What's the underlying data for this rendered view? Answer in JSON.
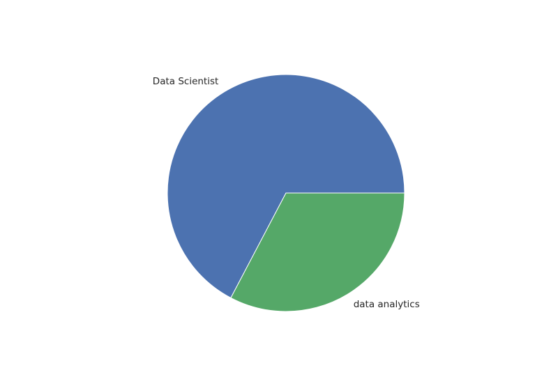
{
  "chart_data": {
    "type": "pie",
    "title": "",
    "labels": [
      "Data Scientist",
      "data analytics"
    ],
    "values": [
      67.3,
      32.7
    ],
    "colors": [
      "#4c72b0",
      "#55a868"
    ],
    "start_angle_deg": 0,
    "direction": "counterclockwise",
    "legend": "none"
  }
}
